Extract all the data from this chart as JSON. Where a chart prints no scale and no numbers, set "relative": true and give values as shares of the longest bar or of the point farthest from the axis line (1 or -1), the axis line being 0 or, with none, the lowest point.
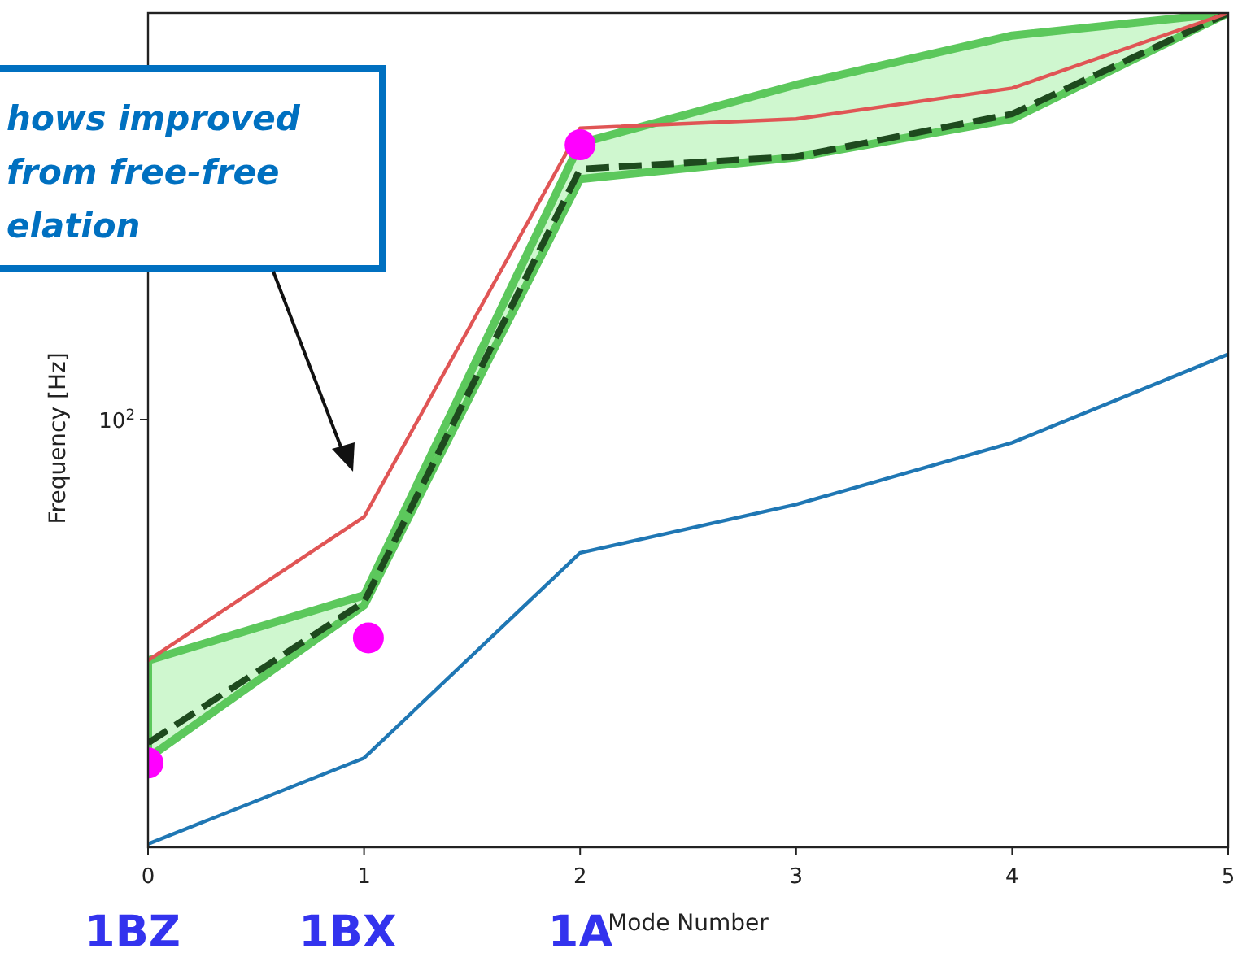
{
  "chart_data": {
    "type": "line",
    "xlabel": "Mode Number",
    "ylabel": "Frequency [Hz]",
    "relative": true,
    "x": [
      0,
      1,
      2,
      3,
      4,
      5
    ],
    "xlim": [
      0,
      5
    ],
    "xticks": [
      0,
      1,
      2,
      3,
      4,
      5
    ],
    "series": [
      {
        "color": "#1f77b4",
        "values": [
          0.004,
          0.107,
          0.353,
          0.411,
          0.485,
          0.591
        ]
      },
      {
        "color": "#1e4a1e",
        "line_style": "dashed",
        "values": [
          0.125,
          0.294,
          0.813,
          0.828,
          0.879,
          1
        ],
        "lower": [
          0.107,
          0.29,
          0.801,
          0.827,
          0.873,
          1
        ],
        "upper": [
          0.224,
          0.302,
          0.844,
          0.914,
          0.973,
          1
        ]
      },
      {
        "color": "#e05555",
        "values": [
          0.224,
          0.396,
          0.862,
          0.873,
          0.91,
          1
        ]
      },
      {
        "type": "scatter",
        "color": "#ff00ff",
        "marker": "circle",
        "x": [
          0,
          1.02,
          2
        ],
        "values": [
          0.101,
          0.251,
          0.842
        ]
      }
    ],
    "annotations": [
      "hows improved\nfrom free-free\nelation",
      "10$^{2}$",
      "1BZ",
      "1BX",
      "1A"
    ]
  }
}
